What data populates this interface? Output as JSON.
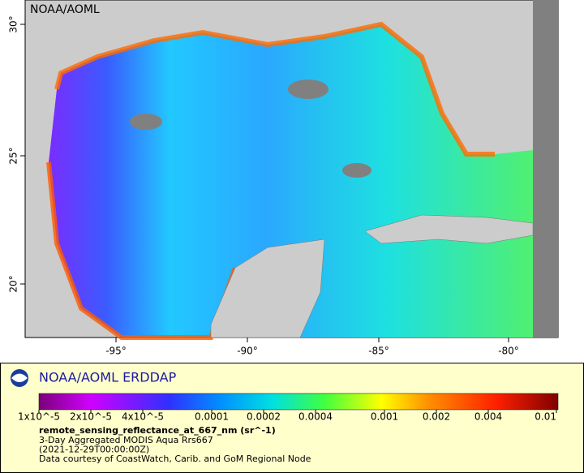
{
  "map": {
    "watermark": "NOAA/AOML",
    "lon_labels": [
      "-95°",
      "-90°",
      "-85°",
      "-80°"
    ],
    "lat_labels": [
      "20°",
      "25°",
      "30°"
    ]
  },
  "legend": {
    "title": "NOAA/AOML ERDDAP",
    "colorbar_labels": [
      "1x10^-5",
      "2x10^-5",
      "4x10^-5",
      "0.0001",
      "0.0002",
      "0.0004",
      "0.001",
      "0.002",
      "0.004",
      "0.01"
    ],
    "variable": "remote_sensing_reflectance_at_667_nm (sr^-1)",
    "lines": [
      "3-Day Aggregated MODIS Aqua Rrs667",
      "(2021-12-29T00:00:00Z)",
      "Data courtesy of CoastWatch, Carib. and GoM Regional Node"
    ]
  }
}
